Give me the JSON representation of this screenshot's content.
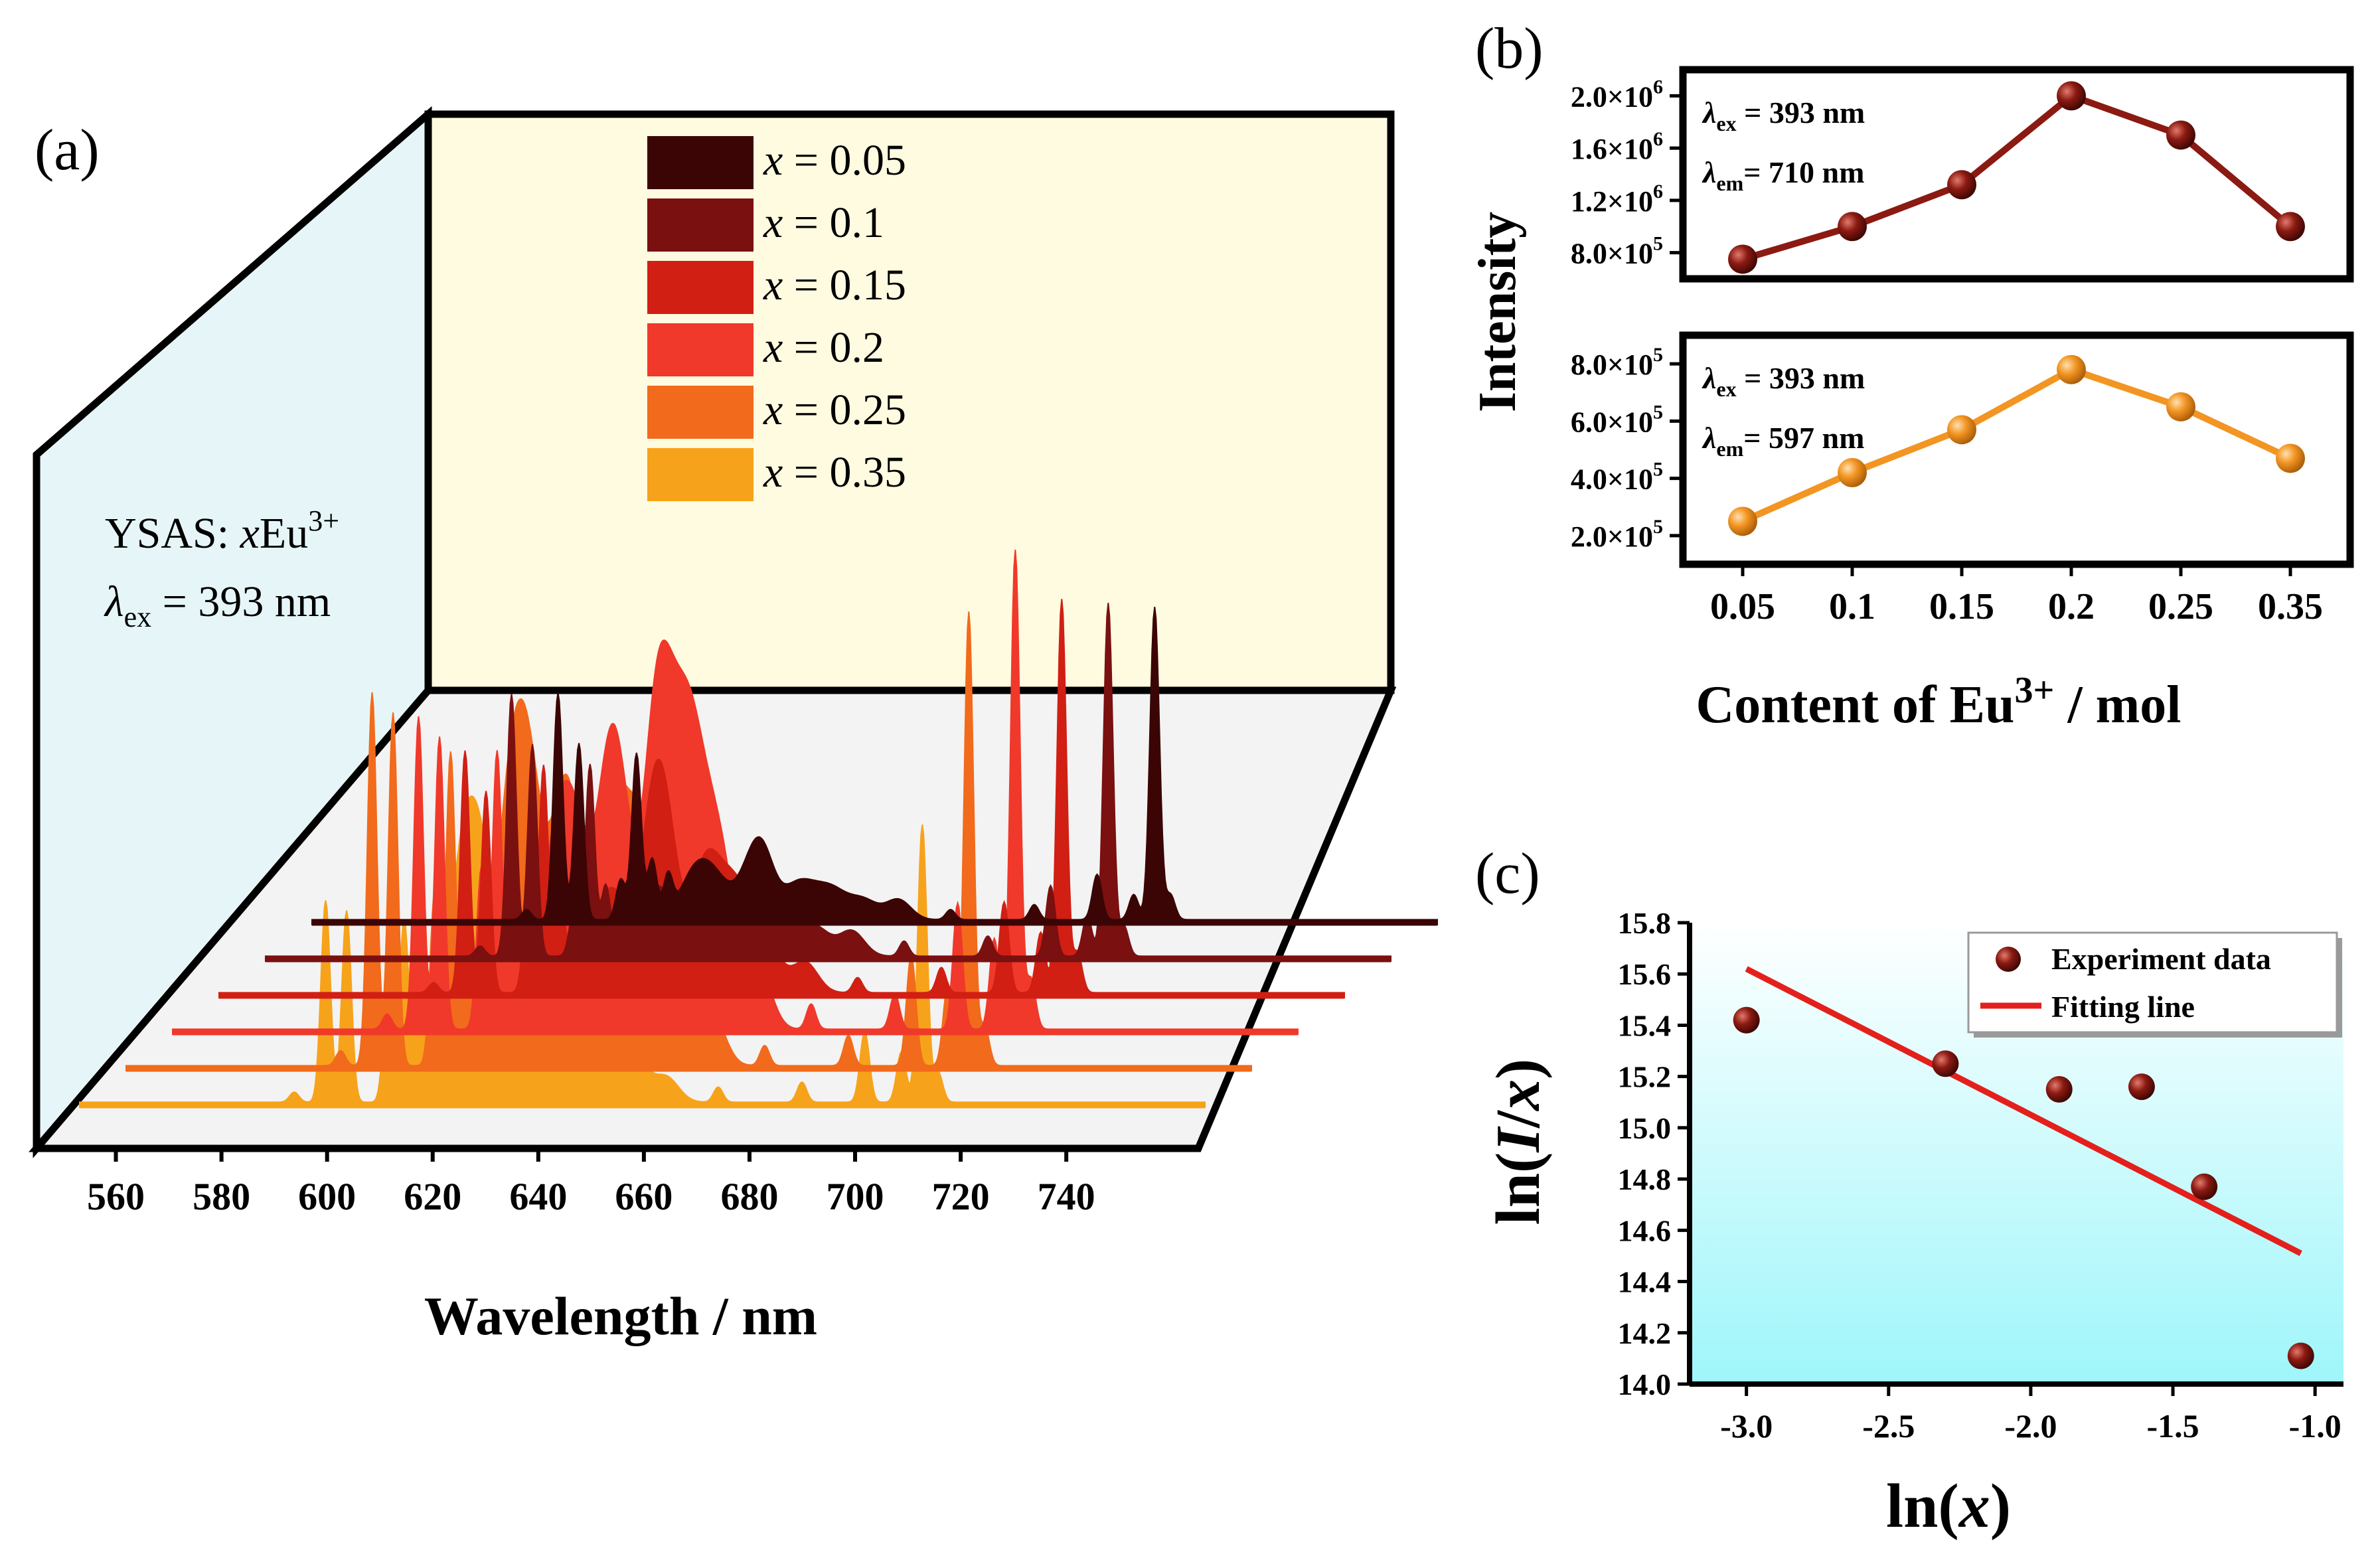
{
  "chart_data": [
    {
      "panel": "(a)",
      "type": "area",
      "title": "",
      "xlabel": "Wavelength / nm",
      "xticks": [
        560,
        580,
        600,
        620,
        640,
        660,
        680,
        700,
        720,
        740
      ],
      "xlim": [
        550,
        765
      ],
      "annotation_line1_prefix": "YSAS: ",
      "annotation_line1_var": "x",
      "annotation_line1_ion": "Eu",
      "annotation_line1_sup": "3+",
      "annotation_line2_sym": "λ",
      "annotation_line2_sub": "ex",
      "annotation_line2_rest": " = 393 nm",
      "peaks_nm": [
        591,
        597,
        601,
        609,
        612,
        615,
        618,
        622,
        625,
        628,
        633,
        636,
        642,
        645,
        648,
        650,
        653,
        656,
        662,
        672,
        688,
        700,
        707,
        711,
        714
      ],
      "series": [
        {
          "name": "x = 0.05",
          "var": "x",
          "label": " = 0.05",
          "color": "#3b0505",
          "heights": [
            0.02,
            0.45,
            0.35,
            0.08,
            0.33,
            0.12,
            0.08,
            0.06,
            0.07,
            0.05,
            0.06,
            0.13,
            0.05,
            0.04,
            0.03,
            0.03,
            0.02,
            0.03,
            0.04,
            0.02,
            0.03,
            0.09,
            0.05,
            0.62,
            0.05
          ]
        },
        {
          "name": "x = 0.1",
          "var": "x",
          "label": " = 0.1",
          "color": "#7a1010",
          "heights": [
            0.02,
            0.52,
            0.42,
            0.1,
            0.38,
            0.14,
            0.1,
            0.07,
            0.08,
            0.06,
            0.07,
            0.14,
            0.06,
            0.05,
            0.04,
            0.04,
            0.03,
            0.04,
            0.05,
            0.03,
            0.04,
            0.14,
            0.08,
            0.7,
            0.06
          ]
        },
        {
          "name": "x = 0.15",
          "var": "x",
          "label": " = 0.15",
          "color": "#d11f14",
          "heights": [
            0.02,
            0.48,
            0.4,
            0.18,
            0.45,
            0.25,
            0.16,
            0.1,
            0.12,
            0.09,
            0.33,
            0.22,
            0.18,
            0.14,
            0.1,
            0.09,
            0.08,
            0.05,
            0.06,
            0.03,
            0.05,
            0.18,
            0.12,
            0.78,
            0.08
          ]
        },
        {
          "name": "x = 0.2",
          "var": "x",
          "label": " = 0.2",
          "color": "#f0392a",
          "heights": [
            0.03,
            0.62,
            0.58,
            0.32,
            0.55,
            0.38,
            0.3,
            0.22,
            0.28,
            0.24,
            0.4,
            0.32,
            0.5,
            0.36,
            0.3,
            0.26,
            0.24,
            0.2,
            0.12,
            0.05,
            0.07,
            0.25,
            0.18,
            0.95,
            0.1
          ]
        },
        {
          "name": "x = 0.25",
          "var": "x",
          "label": " = 0.25",
          "color": "#f26a1b",
          "heights": [
            0.03,
            0.74,
            0.7,
            0.35,
            0.62,
            0.4,
            0.32,
            0.3,
            0.42,
            0.36,
            0.38,
            0.3,
            0.34,
            0.28,
            0.22,
            0.2,
            0.18,
            0.16,
            0.1,
            0.04,
            0.06,
            0.22,
            0.16,
            0.9,
            0.08
          ]
        },
        {
          "name": "x = 0.35",
          "var": "x",
          "label": " = 0.35",
          "color": "#f7a21b",
          "heights": [
            0.02,
            0.4,
            0.38,
            0.25,
            0.36,
            0.3,
            0.28,
            0.3,
            0.34,
            0.28,
            0.26,
            0.18,
            0.22,
            0.18,
            0.14,
            0.1,
            0.1,
            0.08,
            0.05,
            0.03,
            0.04,
            0.14,
            0.1,
            0.55,
            0.06
          ]
        }
      ]
    },
    {
      "panel": "(b)",
      "type": "line",
      "ylabel": "Intensity",
      "xlabel_main": "Content of Eu",
      "xlabel_sup": "3+",
      "xlabel_tail": " / mol",
      "categories": [
        "0.05",
        "0.1",
        "0.15",
        "0.2",
        "0.25",
        "0.35"
      ],
      "subplots": [
        {
          "name": "710 nm emission",
          "color": "#8b1a12",
          "values": [
            750000,
            1000000,
            1320000,
            2000000,
            1700000,
            1000000
          ],
          "ylim": [
            600000,
            2200000
          ],
          "ytick_values": [
            800000,
            1200000,
            1600000,
            2000000
          ],
          "ytick_mantissas": [
            "8.0×10",
            "1.2×10",
            "1.6×10",
            "2.0×10"
          ],
          "ytick_exponents": [
            "5",
            "6",
            "6",
            "6"
          ],
          "label_ex_sym": "λ",
          "label_ex_sub": "ex",
          "label_ex_rest": " = 393 nm",
          "label_em_sym": "λ",
          "label_em_sub": "em",
          "label_em_rest": "= 710 nm"
        },
        {
          "name": "597 nm emission",
          "color": "#f29522",
          "values": [
            250000,
            420000,
            570000,
            780000,
            650000,
            470000
          ],
          "ylim": [
            100000,
            900000
          ],
          "ytick_values": [
            200000,
            400000,
            600000,
            800000
          ],
          "ytick_mantissas": [
            "2.0×10",
            "4.0×10",
            "6.0×10",
            "8.0×10"
          ],
          "ytick_exponents": [
            "5",
            "5",
            "5",
            "5"
          ],
          "label_ex_sym": "λ",
          "label_ex_sub": "ex",
          "label_ex_rest": " = 393 nm",
          "label_em_sym": "λ",
          "label_em_sub": "em",
          "label_em_rest": "= 597 nm"
        }
      ]
    },
    {
      "panel": "(c)",
      "type": "scatter",
      "xlabel": "ln(x)",
      "ylabel": "ln(I/x)",
      "xlim": [
        -3.2,
        -0.9
      ],
      "ylim": [
        14.0,
        15.8
      ],
      "xticks": [
        -3.0,
        -2.5,
        -2.0,
        -1.5,
        -1.0
      ],
      "xtick_labels": [
        "-3.0",
        "-2.5",
        "-2.0",
        "-1.5",
        "-1.0"
      ],
      "yticks": [
        14.0,
        14.2,
        14.4,
        14.6,
        14.8,
        15.0,
        15.2,
        15.4,
        15.6,
        15.8
      ],
      "ytick_labels": [
        "14.0",
        "14.2",
        "14.4",
        "14.6",
        "14.8",
        "15.0",
        "15.2",
        "15.4",
        "15.6",
        "15.8"
      ],
      "points_x": [
        -3.0,
        -2.3,
        -1.9,
        -1.61,
        -1.39,
        -1.05
      ],
      "points_y": [
        15.42,
        15.25,
        15.15,
        15.16,
        14.77,
        14.11
      ],
      "fit_x": [
        -3.0,
        -1.05
      ],
      "fit_y": [
        15.62,
        14.51
      ],
      "legend": [
        "Experiment data",
        "Fitting line"
      ],
      "point_color": "#7a1010",
      "line_color": "#e3201c"
    }
  ],
  "panel_labels": {
    "a": "(a)",
    "b": "(b)",
    "c": "(c)"
  }
}
